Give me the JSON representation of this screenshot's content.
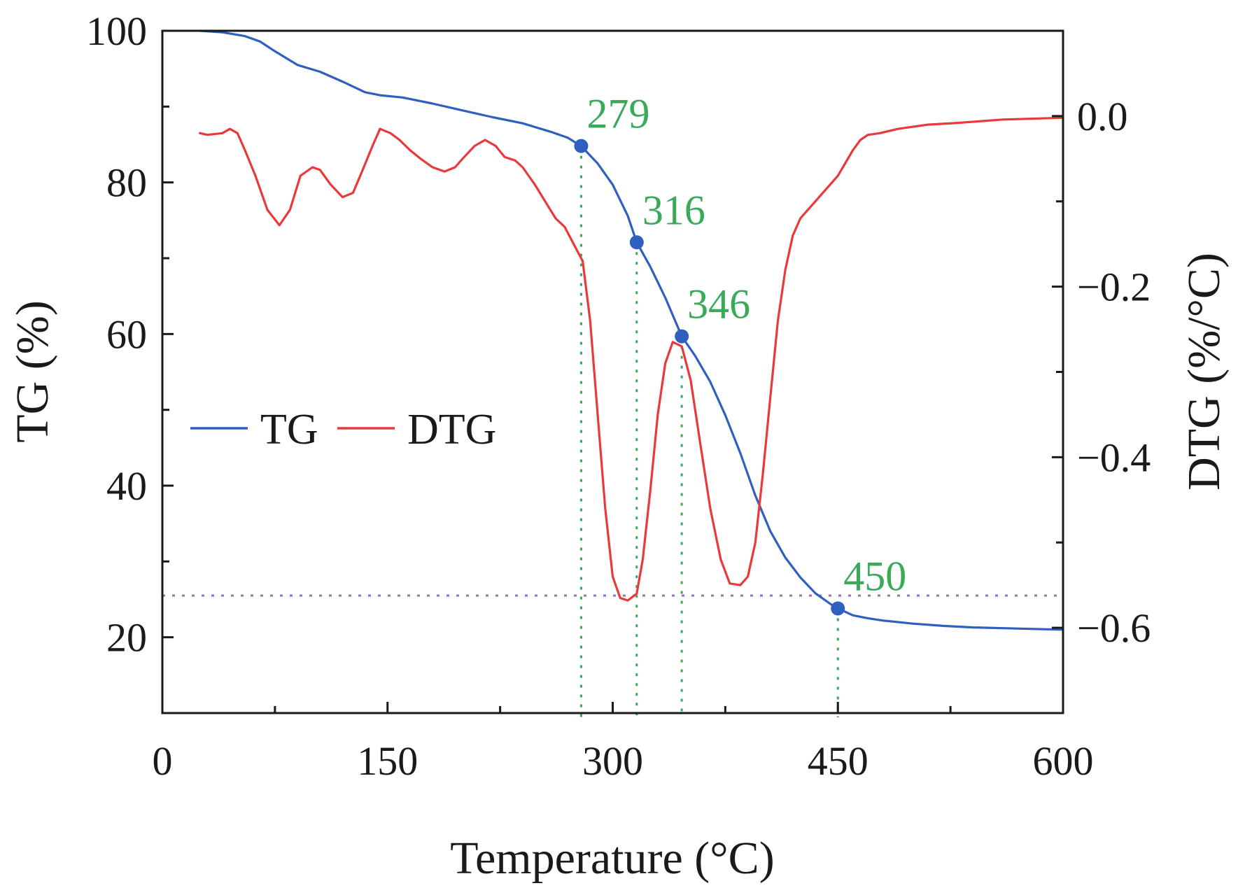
{
  "chart_data": {
    "type": "line",
    "title": "",
    "xlabel": "Temperature (°C)",
    "ylabel_left": "TG (%)",
    "ylabel_right": "DTG (%/°C)",
    "xlim": [
      0,
      600
    ],
    "ylim_left": [
      10,
      100
    ],
    "ylim_right": [
      -0.7,
      0.1
    ],
    "x_ticks": [
      {
        "value": 0,
        "label": "0"
      },
      {
        "value": 150,
        "label": "150"
      },
      {
        "value": 300,
        "label": "300"
      },
      {
        "value": 450,
        "label": "450"
      },
      {
        "value": 600,
        "label": "600"
      }
    ],
    "x_minor_ticks": [
      75,
      225,
      375,
      525
    ],
    "y_left_ticks": [
      {
        "value": 20,
        "label": "20"
      },
      {
        "value": 40,
        "label": "40"
      },
      {
        "value": 60,
        "label": "60"
      },
      {
        "value": 80,
        "label": "80"
      },
      {
        "value": 100,
        "label": "100"
      }
    ],
    "y_left_minor_ticks": [
      30,
      50,
      70,
      90
    ],
    "y_right_ticks": [
      {
        "value": 0.0,
        "label": "0.0"
      },
      {
        "value": -0.2,
        "label": "−0.2"
      },
      {
        "value": -0.4,
        "label": "−0.4"
      },
      {
        "value": -0.6,
        "label": "−0.6"
      }
    ],
    "y_right_minor_ticks": [
      -0.1,
      -0.3,
      -0.5
    ],
    "legend": {
      "position": "center-left",
      "entries": [
        {
          "name": "TG",
          "color": "#2f5fbf"
        },
        {
          "name": "DTG",
          "color": "#e83a3a"
        }
      ]
    },
    "series": [
      {
        "name": "TG",
        "axis": "left",
        "color": "#2f5fbf",
        "x": [
          25,
          40,
          55,
          65,
          75,
          90,
          105,
          120,
          135,
          145,
          160,
          180,
          200,
          220,
          240,
          260,
          270,
          279,
          290,
          300,
          310,
          316,
          325,
          335,
          346,
          355,
          365,
          375,
          385,
          395,
          405,
          415,
          425,
          435,
          445,
          450,
          460,
          470,
          480,
          500,
          520,
          540,
          560,
          580,
          600
        ],
        "values": [
          100,
          99.8,
          99.3,
          98.6,
          97.3,
          95.5,
          94.6,
          93.3,
          91.9,
          91.5,
          91.2,
          90.4,
          89.5,
          88.6,
          87.8,
          86.6,
          85.9,
          84.8,
          82.5,
          79.7,
          75.6,
          72.1,
          68.9,
          64.8,
          59.7,
          57.1,
          53.7,
          49.3,
          44.3,
          38.7,
          34.0,
          30.5,
          27.9,
          25.8,
          24.4,
          23.8,
          22.9,
          22.5,
          22.2,
          21.8,
          21.5,
          21.3,
          21.2,
          21.1,
          21.0
        ]
      },
      {
        "name": "DTG",
        "axis": "right",
        "color": "#e83a3a",
        "x": [
          25,
          30,
          40,
          45,
          50,
          55,
          62,
          70,
          78,
          85,
          92,
          100,
          105,
          112,
          120,
          127,
          133,
          140,
          145,
          152,
          158,
          165,
          172,
          180,
          188,
          195,
          200,
          208,
          215,
          222,
          228,
          235,
          240,
          248,
          255,
          262,
          268,
          274,
          280,
          285,
          290,
          295,
          300,
          305,
          310,
          316,
          320,
          325,
          330,
          335,
          340,
          346,
          352,
          358,
          365,
          372,
          378,
          385,
          390,
          395,
          400,
          405,
          410,
          415,
          420,
          425,
          430,
          435,
          440,
          445,
          450,
          455,
          460,
          465,
          470,
          478,
          490,
          510,
          530,
          560,
          600
        ],
        "values": [
          -0.02,
          -0.022,
          -0.02,
          -0.015,
          -0.02,
          -0.04,
          -0.07,
          -0.11,
          -0.128,
          -0.11,
          -0.07,
          -0.06,
          -0.063,
          -0.08,
          -0.095,
          -0.09,
          -0.065,
          -0.035,
          -0.015,
          -0.02,
          -0.028,
          -0.04,
          -0.05,
          -0.06,
          -0.065,
          -0.06,
          -0.05,
          -0.035,
          -0.028,
          -0.035,
          -0.048,
          -0.052,
          -0.06,
          -0.08,
          -0.1,
          -0.12,
          -0.13,
          -0.15,
          -0.17,
          -0.24,
          -0.35,
          -0.46,
          -0.54,
          -0.565,
          -0.568,
          -0.56,
          -0.52,
          -0.44,
          -0.35,
          -0.29,
          -0.265,
          -0.27,
          -0.31,
          -0.38,
          -0.46,
          -0.52,
          -0.548,
          -0.55,
          -0.54,
          -0.5,
          -0.42,
          -0.33,
          -0.24,
          -0.18,
          -0.14,
          -0.12,
          -0.11,
          -0.1,
          -0.09,
          -0.08,
          -0.07,
          -0.055,
          -0.04,
          -0.028,
          -0.022,
          -0.02,
          -0.015,
          -0.01,
          -0.008,
          -0.004,
          -0.002
        ]
      }
    ],
    "markers": [
      {
        "x": 279,
        "y": 84.8,
        "label": "279"
      },
      {
        "x": 316,
        "y": 72.1,
        "label": "316"
      },
      {
        "x": 346,
        "y": 59.7,
        "label": "346"
      },
      {
        "x": 450,
        "y": 23.8,
        "label": "450"
      }
    ],
    "reference_lines": {
      "horizontal": {
        "y": 25.5,
        "color": "#9b6fc2"
      },
      "vertical_color": "#3aaa5a"
    },
    "annotation_color": "#3aaa5a"
  }
}
